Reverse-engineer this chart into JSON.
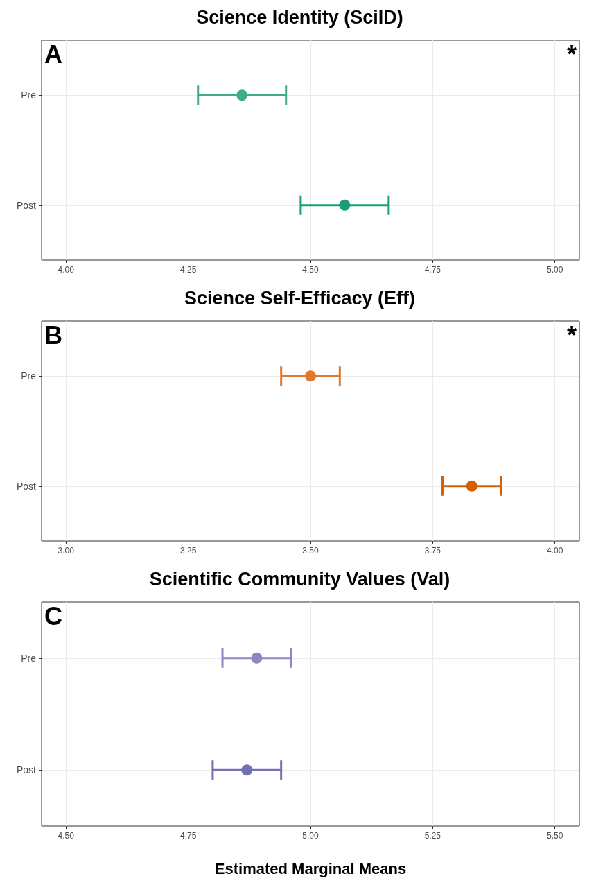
{
  "chart_data": [
    {
      "type": "scatter",
      "title": "Science Identity (SciID)",
      "orientation": "horizontal",
      "categories": [
        "Pre",
        "Post"
      ],
      "values": [
        4.36,
        4.57
      ],
      "errors": [
        0.09,
        0.09
      ],
      "colors": [
        "#3fac87",
        "#1b9e77"
      ],
      "marker": "circle",
      "xlim": [
        3.95,
        5.05
      ],
      "xticks": [
        {
          "value": 4,
          "label": "4.00"
        },
        {
          "value": 4.25,
          "label": "4.25"
        },
        {
          "value": 4.5,
          "label": "4.50"
        },
        {
          "value": 4.75,
          "label": "4.75"
        },
        {
          "value": 5,
          "label": "5.00"
        }
      ],
      "grid": true,
      "annotations": [
        "A",
        "*"
      ]
    },
    {
      "type": "scatter",
      "title": "Science Self-Efficacy (Eff)",
      "orientation": "horizontal",
      "categories": [
        "Pre",
        "Post"
      ],
      "values": [
        3.5,
        3.83
      ],
      "errors": [
        0.06,
        0.06
      ],
      "colors": [
        "#e0782f",
        "#d95f02"
      ],
      "marker": "circle",
      "xlim": [
        2.95,
        4.05
      ],
      "xticks": [
        {
          "value": 3,
          "label": "3.00"
        },
        {
          "value": 3.25,
          "label": "3.25"
        },
        {
          "value": 3.5,
          "label": "3.50"
        },
        {
          "value": 3.75,
          "label": "3.75"
        },
        {
          "value": 4,
          "label": "4.00"
        }
      ],
      "grid": true,
      "annotations": [
        "B",
        "*"
      ]
    },
    {
      "type": "scatter",
      "title": "Scientific Community Values (Val)",
      "xlabel": "Estimated Marginal Means",
      "orientation": "horizontal",
      "categories": [
        "Pre",
        "Post"
      ],
      "values": [
        4.89,
        4.87
      ],
      "errors": [
        0.07,
        0.07
      ],
      "colors": [
        "#8c87c0",
        "#7570b3"
      ],
      "marker": "circle",
      "xlim": [
        4.45,
        5.55
      ],
      "xticks": [
        {
          "value": 4.5,
          "label": "4.50"
        },
        {
          "value": 4.75,
          "label": "4.75"
        },
        {
          "value": 5,
          "label": "5.00"
        },
        {
          "value": 5.25,
          "label": "5.25"
        },
        {
          "value": 5.5,
          "label": "5.50"
        }
      ],
      "grid": true,
      "annotations": [
        "C"
      ]
    }
  ]
}
